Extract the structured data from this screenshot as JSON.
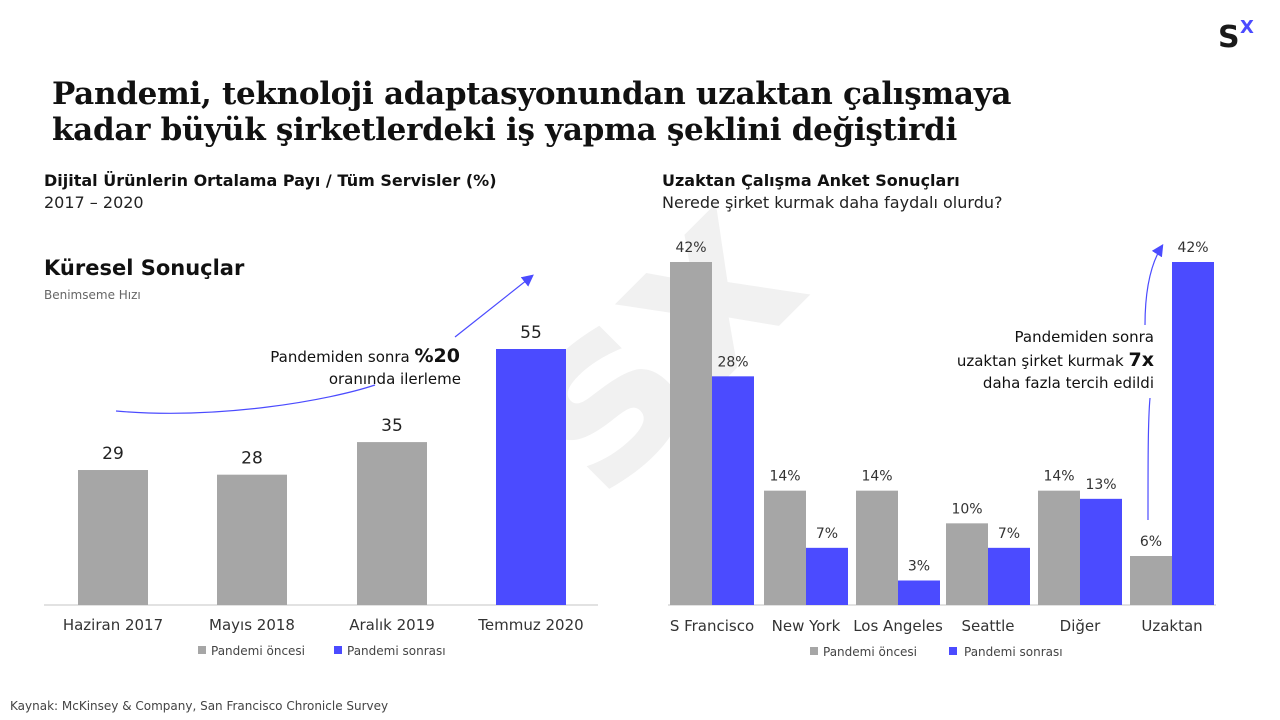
{
  "logo": {
    "s": "S",
    "x": "X",
    "x_color": "#4b4bff"
  },
  "title_line1": "Pandemi, teknoloji adaptasyonundan uzaktan çalışmaya",
  "title_line2": "kadar büyük şirketlerdeki iş yapma şeklini değiştirdi",
  "left": {
    "title": "Dijital Ürünlerin Ortalama Payı / Tüm Servisler (%)",
    "subtitle": "2017 – 2020",
    "section_title": "Küresel Sonuçlar",
    "section_subtitle": "Benimseme Hızı",
    "annotation_line1": "Pandemiden sonra ",
    "annotation_bold": "%20",
    "annotation_line2": "oranında ilerleme"
  },
  "right": {
    "title": "Uzaktan Çalışma Anket Sonuçları",
    "subtitle": "Nerede şirket kurmak daha faydalı olurdu?",
    "annotation_line1": "Pandemiden sonra",
    "annotation_line2": "uzaktan şirket kurmak ",
    "annotation_bold": "7x",
    "annotation_line3": "daha fazla tercih edildi"
  },
  "source": "Kaynak: McKinsey & Company, San Francisco Chronicle Survey",
  "watermark": "sx",
  "colors": {
    "gray": "#a6a6a6",
    "blue": "#4b4bff",
    "axis": "#d9d9d9"
  },
  "chart_data": [
    {
      "type": "bar",
      "title": "Dijital Ürünlerin Ortalama Payı / Tüm Servisler (%)",
      "categories": [
        "Haziran 2017",
        "Mayıs 2018",
        "Aralık 2019",
        "Temmuz 2020"
      ],
      "values": [
        29,
        28,
        35,
        55
      ],
      "bar_series": [
        "Pandemi öncesi",
        "Pandemi öncesi",
        "Pandemi öncesi",
        "Pandemi sonrası"
      ],
      "legend": [
        "Pandemi öncesi",
        "Pandemi sonrası"
      ],
      "ylim": [
        0,
        55
      ],
      "grid": false,
      "legend_position": "bottom"
    },
    {
      "type": "bar",
      "title": "Uzaktan Çalışma Anket Sonuçları",
      "categories": [
        "S Francisco",
        "New York",
        "Los Angeles",
        "Seattle",
        "Diğer",
        "Uzaktan"
      ],
      "series": [
        {
          "name": "Pandemi öncesi",
          "values": [
            42,
            14,
            14,
            10,
            14,
            6
          ],
          "labels": [
            "42%",
            "14%",
            "14%",
            "10%",
            "14%",
            "6%"
          ]
        },
        {
          "name": "Pandemi sonrası",
          "values": [
            28,
            7,
            3,
            7,
            13,
            42
          ],
          "labels": [
            "28%",
            "7%",
            "3%",
            "7%",
            "13%",
            "42%"
          ]
        }
      ],
      "ylim": [
        0,
        42
      ],
      "grid": false,
      "legend_position": "bottom"
    }
  ]
}
